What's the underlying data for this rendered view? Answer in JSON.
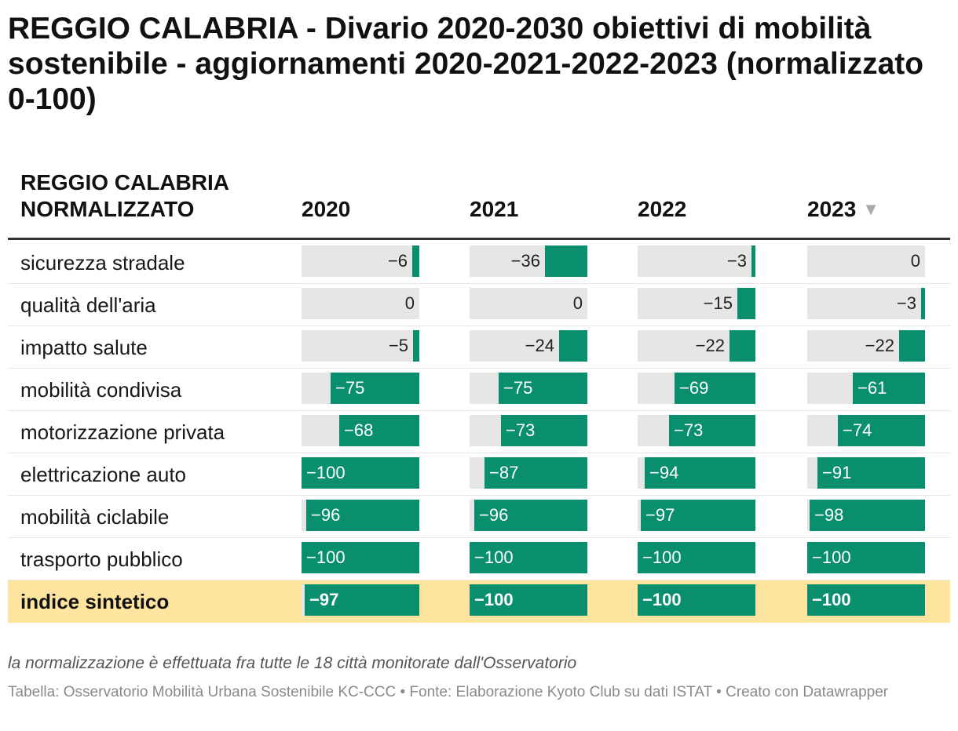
{
  "title": "REGGIO CALABRIA - Divario 2020-2030 obiettivi di mobilità sostenibile - aggiornamenti 2020-2021-2022-2023 (normalizzato 0-100)",
  "note": "la normalizzazione è effettuata fra tutte le 18 città monitorate dall'Osservatorio",
  "credit": "Tabella: Osservatorio Mobilità Urbana Sostenibile KC-CCC • Fonte: Elaborazione Kyoto Club su dati ISTAT • Creato con Datawrapper",
  "colors": {
    "bar": "#0a8f6e",
    "track": "#e6e6e6",
    "highlight_row": "#fde5a0"
  },
  "chart_data": {
    "type": "table",
    "row_header": "REGGIO CALABRIA NORMALIZZATO",
    "columns": [
      "2020",
      "2021",
      "2022",
      "2023"
    ],
    "sorted_column": "2023",
    "sort_icon": "sort-descending-icon",
    "value_range": [
      -100,
      0
    ],
    "rows": [
      {
        "label": "sicurezza stradale",
        "values": [
          -6,
          -36,
          -3,
          0
        ]
      },
      {
        "label": "qualità dell'aria",
        "values": [
          0,
          0,
          -15,
          -3
        ]
      },
      {
        "label": "impatto salute",
        "values": [
          -5,
          -24,
          -22,
          -22
        ]
      },
      {
        "label": "mobilità condivisa",
        "values": [
          -75,
          -75,
          -69,
          -61
        ]
      },
      {
        "label": "motorizzazione privata",
        "values": [
          -68,
          -73,
          -73,
          -74
        ]
      },
      {
        "label": "elettricazione auto",
        "values": [
          -100,
          -87,
          -94,
          -91
        ]
      },
      {
        "label": "mobilità ciclabile",
        "values": [
          -96,
          -96,
          -97,
          -98
        ]
      },
      {
        "label": "trasporto pubblico",
        "values": [
          -100,
          -100,
          -100,
          -100
        ]
      },
      {
        "label": "indice sintetico",
        "values": [
          -97,
          -100,
          -100,
          -100
        ],
        "highlight": true
      }
    ]
  }
}
